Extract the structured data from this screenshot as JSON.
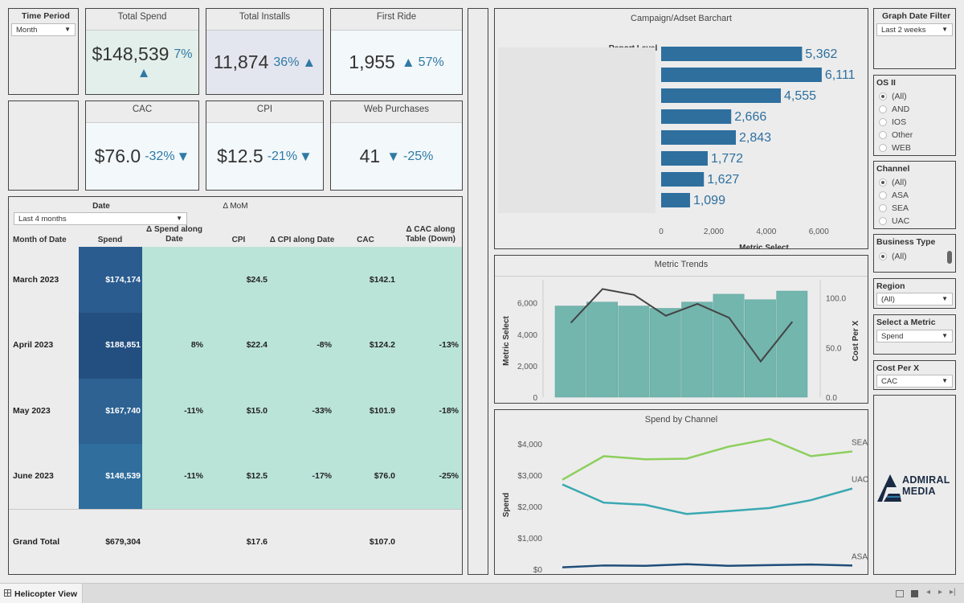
{
  "time_period": {
    "title": "Time Period",
    "value": "Month"
  },
  "kpis": {
    "total_spend": {
      "title": "Total Spend",
      "value": "$148,539",
      "pct": "7%",
      "arrow": "▲"
    },
    "total_installs": {
      "title": "Total Installs",
      "value": "11,874",
      "pct": "36%",
      "arrow": "▲"
    },
    "first_ride": {
      "title": "First Ride",
      "value": "1,955",
      "pct": "57%",
      "arrow": "▲"
    },
    "cac": {
      "title": "CAC",
      "value": "$76.0",
      "pct": "-32%",
      "arrow": "▼"
    },
    "cpi": {
      "title": "CPI",
      "value": "$12.5",
      "pct": "-21%",
      "arrow": "▼"
    },
    "web_purchases": {
      "title": "Web Purchases",
      "value": "41",
      "pct": "-25%",
      "arrow": "▼"
    }
  },
  "table": {
    "date_label": "Date",
    "mom_label": "Δ MoM",
    "date_filter": "Last 4 months",
    "headers": [
      "Month of Date",
      "Spend",
      "Δ Spend along Date",
      "CPI",
      "Δ CPI along Date",
      "CAC",
      "Δ CAC along Table (Down)"
    ],
    "rows": [
      {
        "month": "March 2023",
        "spend": "$174,174",
        "d_spend": "",
        "cpi": "$24.5",
        "d_cpi": "",
        "cac": "$142.1",
        "d_cac": ""
      },
      {
        "month": "April 2023",
        "spend": "$188,851",
        "d_spend": "8%",
        "cpi": "$22.4",
        "d_cpi": "-8%",
        "cac": "$124.2",
        "d_cac": "-13%"
      },
      {
        "month": "May 2023",
        "spend": "$167,740",
        "d_spend": "-11%",
        "cpi": "$15.0",
        "d_cpi": "-33%",
        "cac": "$101.9",
        "d_cac": "-18%"
      },
      {
        "month": "June 2023",
        "spend": "$148,539",
        "d_spend": "-11%",
        "cpi": "$12.5",
        "d_cpi": "-17%",
        "cac": "$76.0",
        "d_cac": "-25%"
      }
    ],
    "total": {
      "label": "Grand Total",
      "spend": "$679,304",
      "cpi": "$17.6",
      "cac": "$107.0"
    }
  },
  "chart_data": [
    {
      "type": "bar",
      "orientation": "horizontal",
      "title": "Campaign/Adset Barchart",
      "ylabel": "Report Level",
      "xlabel": "Metric Select",
      "categories": [
        "",
        "",
        "",
        "",
        "",
        "",
        "",
        ""
      ],
      "values": [
        5362,
        6111,
        4555,
        2666,
        2843,
        1772,
        1627,
        1099
      ],
      "value_labels": [
        "5,362",
        "6,111",
        "4,555",
        "2,666",
        "2,843",
        "1,772",
        "1,627",
        "1,099"
      ],
      "xlim": [
        0,
        7000
      ],
      "xticks": [
        0,
        2000,
        4000,
        6000
      ],
      "xtick_labels": [
        "0",
        "2,000",
        "4,000",
        "6,000"
      ],
      "color": "#2e6f9e"
    },
    {
      "type": "bar",
      "title": "Metric Trends",
      "ylabel": "Metric Select",
      "y2label": "Cost Per X",
      "values": [
        5800,
        6050,
        5800,
        5650,
        6050,
        6550,
        6200,
        6750
      ],
      "ylim": [
        0,
        6750
      ],
      "yticks": [
        0,
        2000,
        4000,
        6000
      ],
      "ytick_labels": [
        "0",
        "2,000",
        "4,000",
        "6,000"
      ],
      "line_series": {
        "name": "Cost Per X",
        "values": [
          75,
          109,
          103,
          82,
          94,
          80,
          36,
          76
        ]
      },
      "y2lim": [
        0,
        115
      ],
      "y2ticks": [
        0,
        50,
        100
      ],
      "y2tick_labels": [
        "0.0",
        "50.0",
        "100.0"
      ],
      "bar_color": "#72b6ae",
      "line_color": "#444444"
    },
    {
      "type": "line",
      "title": "Spend by Channel",
      "ylabel": "Spend",
      "ylim": [
        0,
        4250
      ],
      "yticks": [
        0,
        1000,
        2000,
        3000,
        4000
      ],
      "ytick_labels": [
        "$0",
        "$1,000",
        "$2,000",
        "$3,000",
        "$4,000"
      ],
      "series": [
        {
          "name": "SEA",
          "color": "#8ccf5c",
          "values": [
            2850,
            3600,
            3500,
            3520,
            3900,
            4150,
            3600,
            3750
          ]
        },
        {
          "name": "UAC",
          "color": "#3aa8b2",
          "values": [
            2700,
            2120,
            2050,
            1760,
            1850,
            1950,
            2200,
            2570
          ]
        },
        {
          "name": "ASA",
          "color": "#1f4e79",
          "values": [
            60,
            120,
            110,
            160,
            110,
            130,
            150,
            120
          ]
        }
      ]
    }
  ],
  "filters": {
    "graph_date": {
      "title": "Graph Date Filter",
      "value": "Last 2 weeks"
    },
    "os": {
      "title": "OS II",
      "options": [
        "(All)",
        "AND",
        "IOS",
        "Other",
        "WEB"
      ],
      "selected": 0
    },
    "channel": {
      "title": "Channel",
      "options": [
        "(All)",
        "ASA",
        "SEA",
        "UAC"
      ],
      "selected": 0
    },
    "business_type": {
      "title": "Business Type",
      "options": [
        "(All)"
      ],
      "selected": 0
    },
    "region": {
      "title": "Region",
      "value": "(All)"
    },
    "metric": {
      "title": "Select a Metric",
      "value": "Spend"
    },
    "cost_per_x": {
      "title": "Cost Per X",
      "value": "CAC"
    }
  },
  "logo": {
    "line1": "ADMIRAL",
    "line2": "MEDIA"
  },
  "tab": {
    "label": "Helicopter View"
  }
}
